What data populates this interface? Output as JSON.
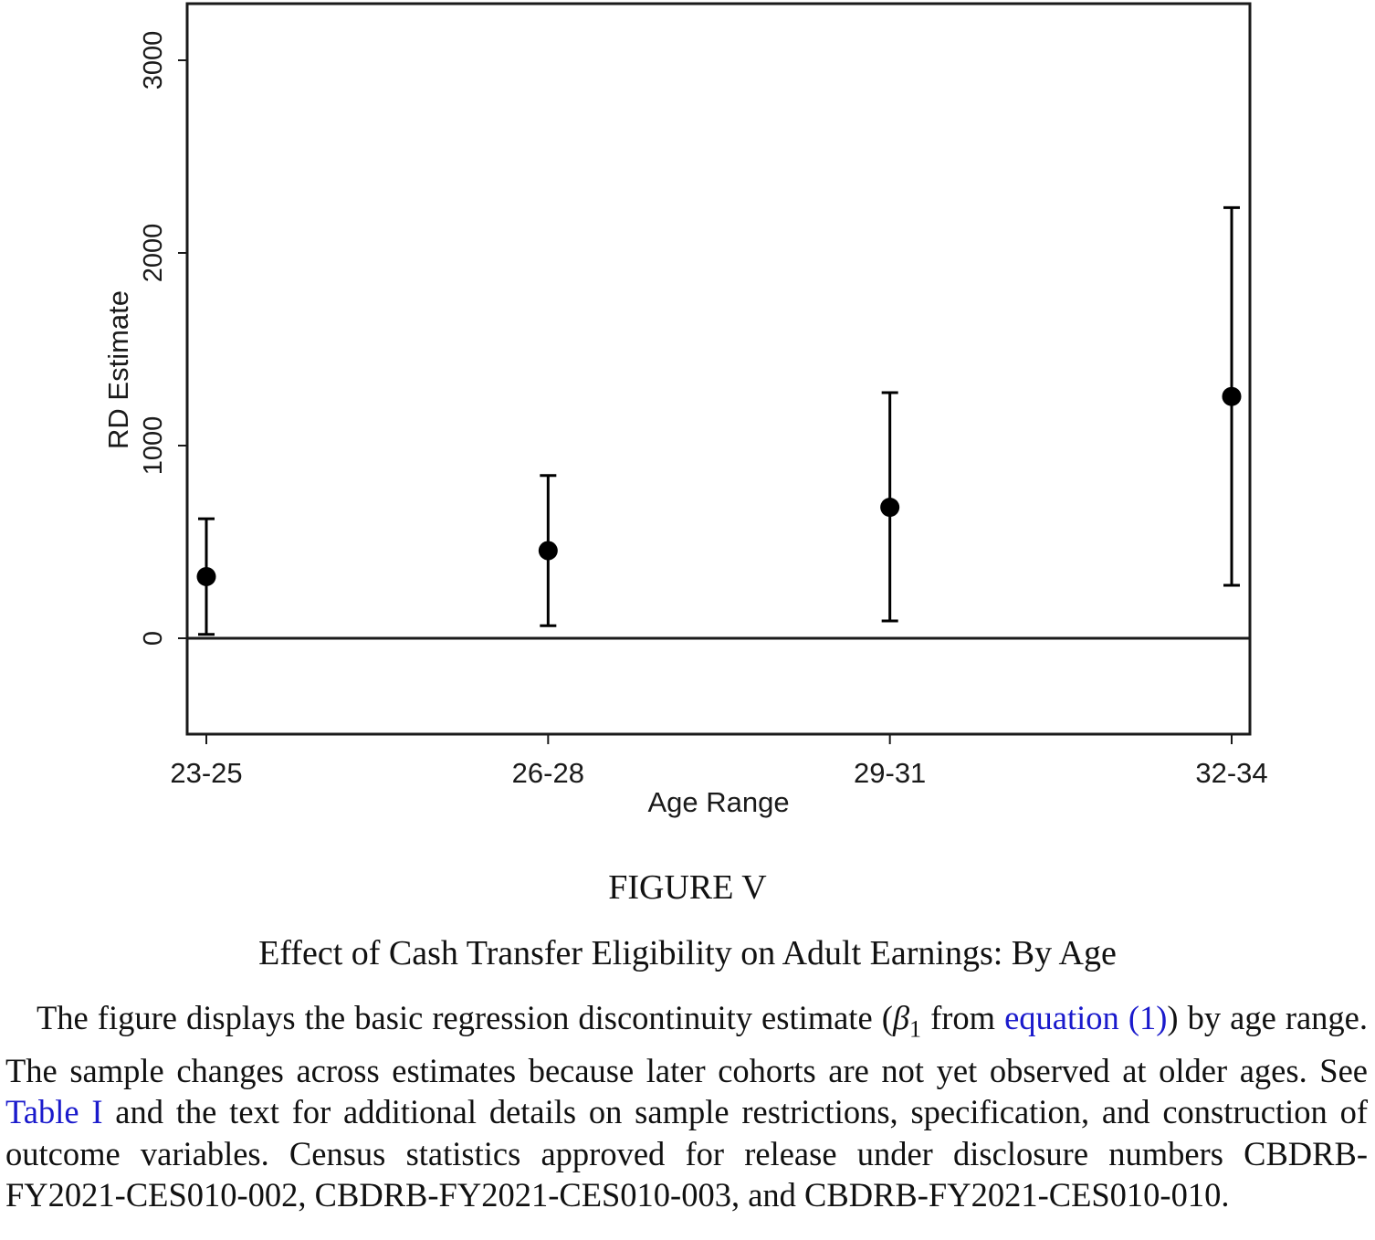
{
  "chart_data": {
    "type": "scatter",
    "style": "point estimates with confidence interval error bars",
    "categories": [
      "23-25",
      "26-28",
      "29-31",
      "32-34"
    ],
    "estimates": [
      320,
      455,
      680,
      1255
    ],
    "ci_low": [
      20,
      65,
      90,
      275
    ],
    "ci_high": [
      620,
      845,
      1275,
      2235
    ],
    "xlabel": "Age Range",
    "ylabel": "RD Estimate",
    "yticks": [
      0,
      1000,
      2000,
      3000
    ],
    "ylim": [
      -500,
      3300
    ],
    "reference_line": 0,
    "grid": false,
    "legend": "none",
    "marker_color": "#000000"
  },
  "figure": {
    "label_first": "F",
    "label_rest": "IGURE",
    "label_num": " V",
    "title": "Effect of Cash Transfer Eligibility on Adult Earnings: By Age"
  },
  "caption": {
    "part1": "The figure displays the basic regression discontinuity estimate (",
    "beta": "β",
    "beta_sub": "1",
    "part2": " from ",
    "link_equation": "equation (1)",
    "part3": ") by age range. The sample changes across estimates because later cohorts are not yet observed at older ages. See ",
    "link_table": "Table I",
    "part4": " and the text for additional details on sample restrictions, specification, and construction of outcome variables. Census statistics approved for release under disclosure numbers CBDRB-FY2021-CES010-002, CBDRB-FY2021-CES010-003, and CBDRB-FY2021-CES010-010."
  }
}
